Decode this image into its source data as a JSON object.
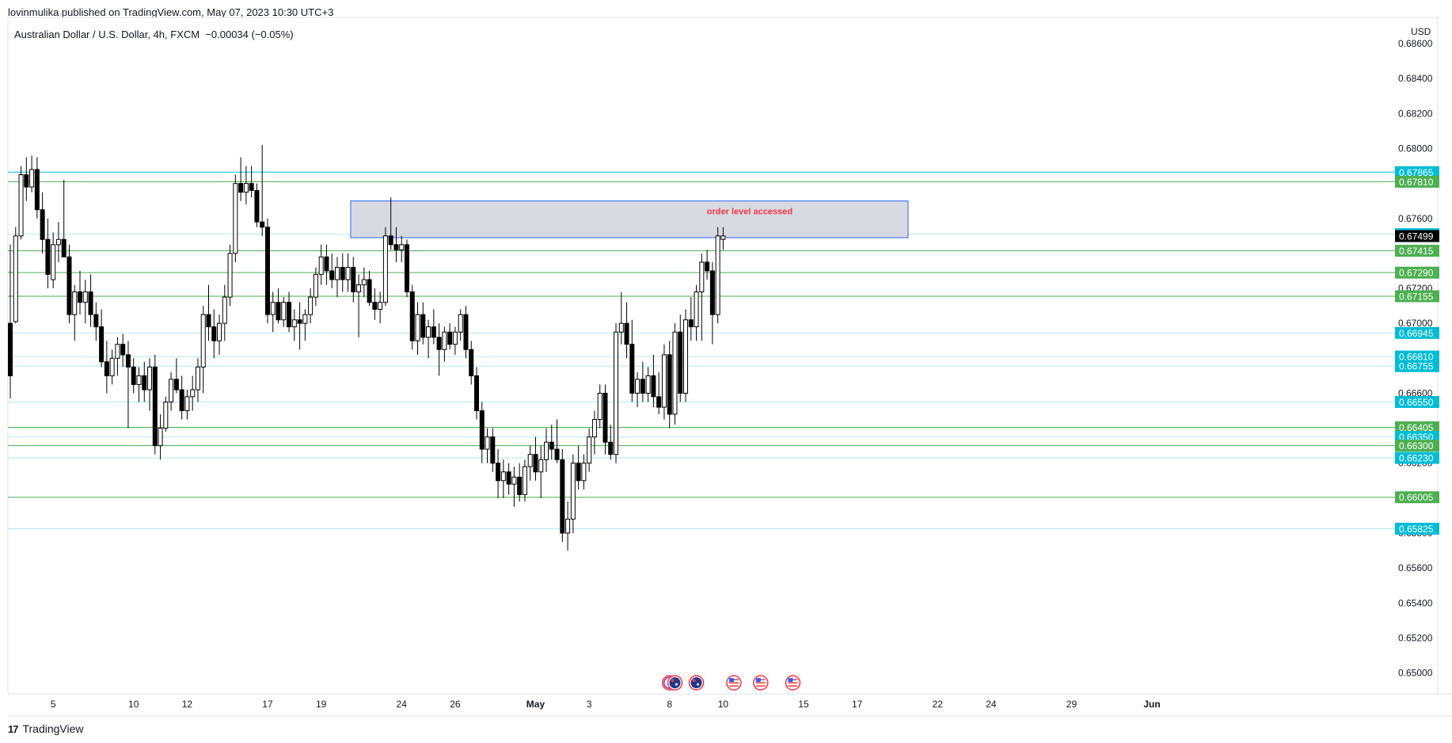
{
  "header": {
    "publisher": "lovinmulika published on TradingView.com, May 07, 2023 10:30 UTC+3",
    "legend": "Australian Dollar / U.S. Dollar, 4h, FXCM  −0.00034 (−0.05%)"
  },
  "footer": {
    "logo_glyph": "17",
    "brand": "TradingView"
  },
  "colors": {
    "up": "#ffffff",
    "down": "#000000",
    "wick": "#000000",
    "cyan": "#00bcd4",
    "green": "#4caf50",
    "current": "#000000",
    "zone_fill": "#d1d4dc",
    "zone_border": "#2962ff",
    "zone_text": "#f23645",
    "level_line": "#b2ebf2"
  },
  "chart_data": {
    "type": "candlestick",
    "symbol": "AUDUSD",
    "interval": "4h",
    "currency": "USD",
    "currency_label": "USD",
    "ylim": [
      0.6488,
      0.6875
    ],
    "y_ticks": [
      "0.68600",
      "0.68400",
      "0.68200",
      "0.68000",
      "0.67800",
      "0.67600",
      "0.67400",
      "0.67200",
      "0.67000",
      "0.66800",
      "0.66600",
      "0.66400",
      "0.66200",
      "0.66000",
      "0.65800",
      "0.65600",
      "0.65400",
      "0.65200",
      "0.65000"
    ],
    "x_ticks": [
      {
        "label": "5",
        "idx": 8
      },
      {
        "label": "10",
        "idx": 23
      },
      {
        "label": "12",
        "idx": 33
      },
      {
        "label": "17",
        "idx": 48
      },
      {
        "label": "19",
        "idx": 58
      },
      {
        "label": "24",
        "idx": 73
      },
      {
        "label": "26",
        "idx": 83
      },
      {
        "label": "May",
        "idx": 98
      },
      {
        "label": "3",
        "idx": 108
      },
      {
        "label": "8",
        "idx": 123
      },
      {
        "label": "10",
        "idx": 133
      },
      {
        "label": "15",
        "idx": 148
      },
      {
        "label": "17",
        "idx": 158
      },
      {
        "label": "22",
        "idx": 173
      },
      {
        "label": "24",
        "idx": 183
      },
      {
        "label": "29",
        "idx": 198
      },
      {
        "label": "Jun",
        "idx": 213
      }
    ],
    "candles_ohlc": [
      [
        0.67,
        0.6745,
        0.6657,
        0.667
      ],
      [
        0.6701,
        0.6755,
        0.67,
        0.675
      ],
      [
        0.675,
        0.679,
        0.6748,
        0.6785
      ],
      [
        0.6785,
        0.6795,
        0.677,
        0.6778
      ],
      [
        0.6778,
        0.6796,
        0.6775,
        0.6788
      ],
      [
        0.6788,
        0.6795,
        0.676,
        0.6765
      ],
      [
        0.6765,
        0.6775,
        0.674,
        0.6748
      ],
      [
        0.6748,
        0.676,
        0.672,
        0.6728
      ],
      [
        0.6725,
        0.6752,
        0.672,
        0.6745
      ],
      [
        0.6745,
        0.6758,
        0.6735,
        0.6748
      ],
      [
        0.6748,
        0.6782,
        0.674,
        0.6738
      ],
      [
        0.6738,
        0.6745,
        0.67,
        0.6705
      ],
      [
        0.6705,
        0.6722,
        0.669,
        0.6718
      ],
      [
        0.6718,
        0.673,
        0.6705,
        0.6712
      ],
      [
        0.6712,
        0.6725,
        0.67,
        0.6718
      ],
      [
        0.6718,
        0.6728,
        0.6698,
        0.6705
      ],
      [
        0.6705,
        0.6712,
        0.669,
        0.6698
      ],
      [
        0.6698,
        0.6708,
        0.6675,
        0.6678
      ],
      [
        0.6678,
        0.669,
        0.666,
        0.667
      ],
      [
        0.667,
        0.6685,
        0.6665,
        0.668
      ],
      [
        0.668,
        0.6692,
        0.667,
        0.6688
      ],
      [
        0.6688,
        0.6694,
        0.6675,
        0.6682
      ],
      [
        0.6682,
        0.669,
        0.664,
        0.6675
      ],
      [
        0.6675,
        0.668,
        0.666,
        0.6665
      ],
      [
        0.6665,
        0.6675,
        0.6655,
        0.667
      ],
      [
        0.667,
        0.6678,
        0.6655,
        0.6662
      ],
      [
        0.6662,
        0.668,
        0.665,
        0.6675
      ],
      [
        0.6675,
        0.6682,
        0.6625,
        0.663
      ],
      [
        0.663,
        0.6648,
        0.6622,
        0.664
      ],
      [
        0.664,
        0.6658,
        0.6638,
        0.6655
      ],
      [
        0.6655,
        0.6672,
        0.665,
        0.6668
      ],
      [
        0.6668,
        0.668,
        0.666,
        0.6662
      ],
      [
        0.6662,
        0.667,
        0.6645,
        0.665
      ],
      [
        0.665,
        0.6662,
        0.6645,
        0.6658
      ],
      [
        0.6658,
        0.667,
        0.665,
        0.6662
      ],
      [
        0.6662,
        0.668,
        0.6655,
        0.6675
      ],
      [
        0.6675,
        0.671,
        0.666,
        0.6705
      ],
      [
        0.6705,
        0.6722,
        0.669,
        0.6698
      ],
      [
        0.6698,
        0.6708,
        0.668,
        0.669
      ],
      [
        0.669,
        0.6705,
        0.6682,
        0.67
      ],
      [
        0.67,
        0.6722,
        0.669,
        0.6715
      ],
      [
        0.6715,
        0.6745,
        0.671,
        0.674
      ],
      [
        0.674,
        0.6785,
        0.6735,
        0.678
      ],
      [
        0.678,
        0.6795,
        0.677,
        0.6775
      ],
      [
        0.6775,
        0.679,
        0.6768,
        0.678
      ],
      [
        0.678,
        0.679,
        0.6772,
        0.6776
      ],
      [
        0.6776,
        0.678,
        0.6755,
        0.6758
      ],
      [
        0.6758,
        0.6802,
        0.675,
        0.6755
      ],
      [
        0.6755,
        0.676,
        0.67,
        0.6705
      ],
      [
        0.6705,
        0.6718,
        0.6695,
        0.6712
      ],
      [
        0.6712,
        0.672,
        0.67,
        0.6702
      ],
      [
        0.6702,
        0.6715,
        0.6698,
        0.6712
      ],
      [
        0.6712,
        0.6718,
        0.6695,
        0.6698
      ],
      [
        0.6698,
        0.6708,
        0.669,
        0.6702
      ],
      [
        0.6702,
        0.6712,
        0.6685,
        0.67
      ],
      [
        0.67,
        0.6708,
        0.669,
        0.6705
      ],
      [
        0.6705,
        0.672,
        0.67,
        0.6715
      ],
      [
        0.6715,
        0.6732,
        0.671,
        0.6728
      ],
      [
        0.6728,
        0.6745,
        0.6722,
        0.6738
      ],
      [
        0.6738,
        0.6745,
        0.6722,
        0.673
      ],
      [
        0.673,
        0.674,
        0.672,
        0.6725
      ],
      [
        0.6725,
        0.6738,
        0.6715,
        0.6732
      ],
      [
        0.6732,
        0.674,
        0.6718,
        0.6725
      ],
      [
        0.6725,
        0.674,
        0.6718,
        0.6732
      ],
      [
        0.6732,
        0.6738,
        0.6712,
        0.6718
      ],
      [
        0.6718,
        0.6728,
        0.6692,
        0.6722
      ],
      [
        0.6722,
        0.6732,
        0.6715,
        0.6725
      ],
      [
        0.6725,
        0.673,
        0.671,
        0.6712
      ],
      [
        0.6712,
        0.672,
        0.6702,
        0.6708
      ],
      [
        0.6708,
        0.6718,
        0.67,
        0.6712
      ],
      [
        0.6712,
        0.6755,
        0.671,
        0.675
      ],
      [
        0.675,
        0.6772,
        0.6742,
        0.6745
      ],
      [
        0.6745,
        0.6755,
        0.6735,
        0.6742
      ],
      [
        0.6742,
        0.675,
        0.6735,
        0.6745
      ],
      [
        0.6745,
        0.6748,
        0.6715,
        0.6718
      ],
      [
        0.6718,
        0.6722,
        0.6685,
        0.669
      ],
      [
        0.669,
        0.6712,
        0.6682,
        0.6705
      ],
      [
        0.6705,
        0.6712,
        0.6688,
        0.6692
      ],
      [
        0.6692,
        0.6702,
        0.668,
        0.6698
      ],
      [
        0.6698,
        0.6708,
        0.6688,
        0.6692
      ],
      [
        0.6692,
        0.67,
        0.667,
        0.6685
      ],
      [
        0.6685,
        0.6698,
        0.6678,
        0.6695
      ],
      [
        0.6695,
        0.67,
        0.6685,
        0.6688
      ],
      [
        0.6688,
        0.6698,
        0.6682,
        0.6695
      ],
      [
        0.6695,
        0.6708,
        0.669,
        0.6705
      ],
      [
        0.6705,
        0.671,
        0.668,
        0.6685
      ],
      [
        0.6685,
        0.669,
        0.6665,
        0.667
      ],
      [
        0.667,
        0.6675,
        0.6645,
        0.665
      ],
      [
        0.665,
        0.6655,
        0.662,
        0.6628
      ],
      [
        0.6628,
        0.664,
        0.662,
        0.6635
      ],
      [
        0.6635,
        0.664,
        0.6615,
        0.662
      ],
      [
        0.662,
        0.6628,
        0.66,
        0.661
      ],
      [
        0.661,
        0.6622,
        0.66,
        0.6615
      ],
      [
        0.6615,
        0.662,
        0.6602,
        0.6608
      ],
      [
        0.6608,
        0.6618,
        0.6595,
        0.6612
      ],
      [
        0.6612,
        0.662,
        0.6598,
        0.6602
      ],
      [
        0.6602,
        0.6622,
        0.6598,
        0.6618
      ],
      [
        0.6618,
        0.663,
        0.661,
        0.6625
      ],
      [
        0.6625,
        0.6635,
        0.661,
        0.6615
      ],
      [
        0.6615,
        0.663,
        0.66,
        0.6622
      ],
      [
        0.6622,
        0.664,
        0.6615,
        0.6632
      ],
      [
        0.6632,
        0.6642,
        0.6622,
        0.6628
      ],
      [
        0.6628,
        0.6645,
        0.662,
        0.6622
      ],
      [
        0.6622,
        0.6628,
        0.6575,
        0.658
      ],
      [
        0.658,
        0.6598,
        0.657,
        0.6588
      ],
      [
        0.6588,
        0.6625,
        0.658,
        0.662
      ],
      [
        0.662,
        0.663,
        0.6605,
        0.661
      ],
      [
        0.661,
        0.6625,
        0.6605,
        0.662
      ],
      [
        0.662,
        0.664,
        0.6615,
        0.6635
      ],
      [
        0.6635,
        0.665,
        0.6625,
        0.6645
      ],
      [
        0.6645,
        0.6665,
        0.664,
        0.666
      ],
      [
        0.666,
        0.6665,
        0.6625,
        0.6632
      ],
      [
        0.6632,
        0.6642,
        0.6622,
        0.6625
      ],
      [
        0.6625,
        0.67,
        0.662,
        0.6695
      ],
      [
        0.6695,
        0.6718,
        0.6688,
        0.67
      ],
      [
        0.67,
        0.6712,
        0.668,
        0.6688
      ],
      [
        0.6688,
        0.6702,
        0.6655,
        0.666
      ],
      [
        0.666,
        0.6672,
        0.6652,
        0.6668
      ],
      [
        0.6668,
        0.6678,
        0.6655,
        0.666
      ],
      [
        0.666,
        0.6675,
        0.6655,
        0.667
      ],
      [
        0.667,
        0.6682,
        0.6652,
        0.6658
      ],
      [
        0.6658,
        0.6672,
        0.6648,
        0.6652
      ],
      [
        0.6652,
        0.6688,
        0.6645,
        0.6682
      ],
      [
        0.6682,
        0.669,
        0.664,
        0.6648
      ],
      [
        0.6648,
        0.67,
        0.6642,
        0.6695
      ],
      [
        0.6695,
        0.6705,
        0.6655,
        0.666
      ],
      [
        0.666,
        0.6708,
        0.6655,
        0.6702
      ],
      [
        0.6702,
        0.6715,
        0.669,
        0.6698
      ],
      [
        0.6698,
        0.6722,
        0.669,
        0.6718
      ],
      [
        0.6718,
        0.674,
        0.669,
        0.6735
      ],
      [
        0.6735,
        0.6742,
        0.6725,
        0.673
      ],
      [
        0.673,
        0.6735,
        0.6688,
        0.6705
      ],
      [
        0.6705,
        0.6755,
        0.67,
        0.675
      ],
      [
        0.6748,
        0.6755,
        0.6742,
        0.675
      ]
    ],
    "levels": [
      {
        "value": 0.67865,
        "label": "0.67865",
        "color": "cyan"
      },
      {
        "value": 0.6781,
        "label": "0.67810",
        "color": "green"
      },
      {
        "value": 0.6751,
        "label": "0.67510",
        "color": "cyan"
      },
      {
        "value": 0.67499,
        "label": "0.67499",
        "color": "current"
      },
      {
        "value": 0.67415,
        "label": "0.67415",
        "color": "green"
      },
      {
        "value": 0.6729,
        "label": "0.67290",
        "color": "green"
      },
      {
        "value": 0.67155,
        "label": "0.67155",
        "color": "green"
      },
      {
        "value": 0.66945,
        "label": "0.66945",
        "color": "cyan"
      },
      {
        "value": 0.6681,
        "label": "0.66810",
        "color": "cyan"
      },
      {
        "value": 0.66755,
        "label": "0.66755",
        "color": "cyan"
      },
      {
        "value": 0.6655,
        "label": "0.66550",
        "color": "cyan"
      },
      {
        "value": 0.66405,
        "label": "0.66405",
        "color": "green"
      },
      {
        "value": 0.6635,
        "label": "0.66350",
        "color": "cyan"
      },
      {
        "value": 0.663,
        "label": "0.66300",
        "color": "green"
      },
      {
        "value": 0.6623,
        "label": "0.66230",
        "color": "cyan"
      },
      {
        "value": 0.66005,
        "label": "0.66005",
        "color": "green"
      },
      {
        "value": 0.65825,
        "label": "0.65825",
        "color": "cyan"
      }
    ],
    "zone": {
      "label": "order level accessed",
      "y_top": 0.677,
      "y_bottom": 0.6749,
      "x_start_idx": 63.5,
      "x_end_idx": 167.5
    },
    "event_icons": [
      {
        "idx": 123,
        "kind": "flash-flag"
      },
      {
        "idx": 124,
        "kind": "au-flag"
      },
      {
        "idx": 128,
        "kind": "au-flag"
      },
      {
        "idx": 135,
        "kind": "us-flag"
      },
      {
        "idx": 140,
        "kind": "us-flag"
      },
      {
        "idx": 146,
        "kind": "us-flag"
      }
    ]
  }
}
